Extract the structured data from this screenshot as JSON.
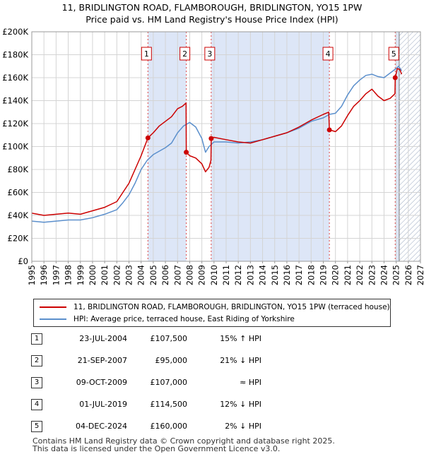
{
  "title": {
    "line1": "11, BRIDLINGTON ROAD, FLAMBOROUGH, BRIDLINGTON, YO15 1PW",
    "line2": "Price paid vs. HM Land Registry's House Price Index (HPI)"
  },
  "colors": {
    "price_line": "#cc0000",
    "hpi_line": "#5b8fcc",
    "shade": "#dde6f7",
    "hatch": "#9aa8c0",
    "marker_dash": "#dd4444"
  },
  "chart_data": {
    "type": "line",
    "xlim": [
      1995,
      2027
    ],
    "ylim": [
      0,
      200000
    ],
    "x_ticks": [
      1995,
      1996,
      1997,
      1998,
      1999,
      2000,
      2001,
      2002,
      2003,
      2004,
      2005,
      2006,
      2007,
      2008,
      2009,
      2010,
      2011,
      2012,
      2013,
      2014,
      2015,
      2016,
      2017,
      2018,
      2019,
      2020,
      2021,
      2022,
      2023,
      2024,
      2025,
      2026,
      2027
    ],
    "y_ticks": [
      {
        "value": 0,
        "label": "£0"
      },
      {
        "value": 20000,
        "label": "£20K"
      },
      {
        "value": 40000,
        "label": "£40K"
      },
      {
        "value": 60000,
        "label": "£60K"
      },
      {
        "value": 80000,
        "label": "£80K"
      },
      {
        "value": 100000,
        "label": "£100K"
      },
      {
        "value": 120000,
        "label": "£120K"
      },
      {
        "value": 140000,
        "label": "£140K"
      },
      {
        "value": 160000,
        "label": "£160K"
      },
      {
        "value": 180000,
        "label": "£180K"
      },
      {
        "value": 200000,
        "label": "£200K"
      }
    ],
    "shaded_ranges": [
      [
        2004.56,
        2007.72
      ],
      [
        2009.77,
        2019.5
      ],
      [
        2024.92,
        2025.25
      ]
    ],
    "forecast_from": 2025.25,
    "sales": [
      {
        "id": "1",
        "x": 2004.56,
        "y": 107500
      },
      {
        "id": "2",
        "x": 2007.72,
        "y": 95000
      },
      {
        "id": "3",
        "x": 2009.77,
        "y": 107000
      },
      {
        "id": "4",
        "x": 2019.5,
        "y": 114500
      },
      {
        "id": "5",
        "x": 2024.92,
        "y": 160000
      }
    ],
    "series": [
      {
        "name": "11, BRIDLINGTON ROAD, FLAMBOROUGH, BRIDLINGTON, YO15 1PW (terraced house)",
        "x": [
          1995.0,
          1996.0,
          1997.0,
          1998.0,
          1999.0,
          2000.0,
          2001.0,
          2002.0,
          2002.5,
          2003.0,
          2003.5,
          2004.0,
          2004.56,
          2005.0,
          2005.5,
          2006.0,
          2006.5,
          2007.0,
          2007.4,
          2007.7,
          2007.72,
          2008.0,
          2008.5,
          2009.0,
          2009.3,
          2009.6,
          2009.75,
          2009.77,
          2010.0,
          2011.0,
          2012.0,
          2013.0,
          2014.0,
          2015.0,
          2016.0,
          2017.0,
          2018.0,
          2019.0,
          2019.45,
          2019.5,
          2020.0,
          2020.5,
          2021.0,
          2021.5,
          2022.0,
          2022.5,
          2023.0,
          2023.5,
          2024.0,
          2024.5,
          2024.9,
          2024.92,
          2025.1,
          2025.3,
          2025.45
        ],
        "y": [
          42000,
          40000,
          41000,
          42000,
          41000,
          44000,
          47000,
          52000,
          60000,
          68000,
          80000,
          92000,
          107500,
          112000,
          118000,
          122000,
          126000,
          133000,
          135000,
          138000,
          95000,
          92000,
          90000,
          85000,
          78000,
          82000,
          88000,
          107000,
          108000,
          106000,
          104000,
          103000,
          106000,
          109000,
          112000,
          117000,
          123000,
          128000,
          130000,
          114500,
          113000,
          118000,
          127000,
          135000,
          140000,
          146000,
          150000,
          144000,
          140000,
          142000,
          146000,
          160000,
          168000,
          167000,
          163000
        ]
      },
      {
        "name": "HPI: Average price, terraced house, East Riding of Yorkshire",
        "x": [
          1995.0,
          1996.0,
          1997.0,
          1998.0,
          1999.0,
          2000.0,
          2001.0,
          2002.0,
          2002.5,
          2003.0,
          2003.5,
          2004.0,
          2004.5,
          2005.0,
          2005.5,
          2006.0,
          2006.5,
          2007.0,
          2007.5,
          2008.0,
          2008.5,
          2009.0,
          2009.3,
          2009.6,
          2010.0,
          2011.0,
          2012.0,
          2013.0,
          2014.0,
          2015.0,
          2016.0,
          2017.0,
          2018.0,
          2019.0,
          2019.5,
          2020.0,
          2020.5,
          2021.0,
          2021.5,
          2022.0,
          2022.5,
          2023.0,
          2023.5,
          2024.0,
          2024.5,
          2025.0,
          2025.2,
          2025.45
        ],
        "y": [
          35000,
          34000,
          35000,
          36000,
          36000,
          38000,
          41000,
          45000,
          51000,
          58000,
          68000,
          80000,
          88000,
          93000,
          96000,
          99000,
          103000,
          112000,
          118000,
          121000,
          117000,
          107000,
          95000,
          100000,
          104000,
          104000,
          103000,
          104000,
          106000,
          109000,
          112000,
          116000,
          122000,
          125000,
          128000,
          129000,
          135000,
          145000,
          153000,
          158000,
          162000,
          163000,
          161000,
          160000,
          164000,
          168000,
          170000,
          166000
        ]
      }
    ]
  },
  "legend": {
    "price_label": "11, BRIDLINGTON ROAD, FLAMBOROUGH, BRIDLINGTON, YO15 1PW (terraced house)",
    "hpi_label": "HPI: Average price, terraced house, East Riding of Yorkshire"
  },
  "sales_table": [
    {
      "num": "1",
      "date": "23-JUL-2004",
      "price": "£107,500",
      "hpi": "15% ↑ HPI"
    },
    {
      "num": "2",
      "date": "21-SEP-2007",
      "price": "£95,000",
      "hpi": "21% ↓ HPI"
    },
    {
      "num": "3",
      "date": "09-OCT-2009",
      "price": "£107,000",
      "hpi": "≈ HPI"
    },
    {
      "num": "4",
      "date": "01-JUL-2019",
      "price": "£114,500",
      "hpi": "12% ↓ HPI"
    },
    {
      "num": "5",
      "date": "04-DEC-2024",
      "price": "£160,000",
      "hpi": "2% ↓ HPI"
    }
  ],
  "footer": {
    "line1": "Contains HM Land Registry data © Crown copyright and database right 2025.",
    "line2": "This data is licensed under the Open Government Licence v3.0."
  }
}
